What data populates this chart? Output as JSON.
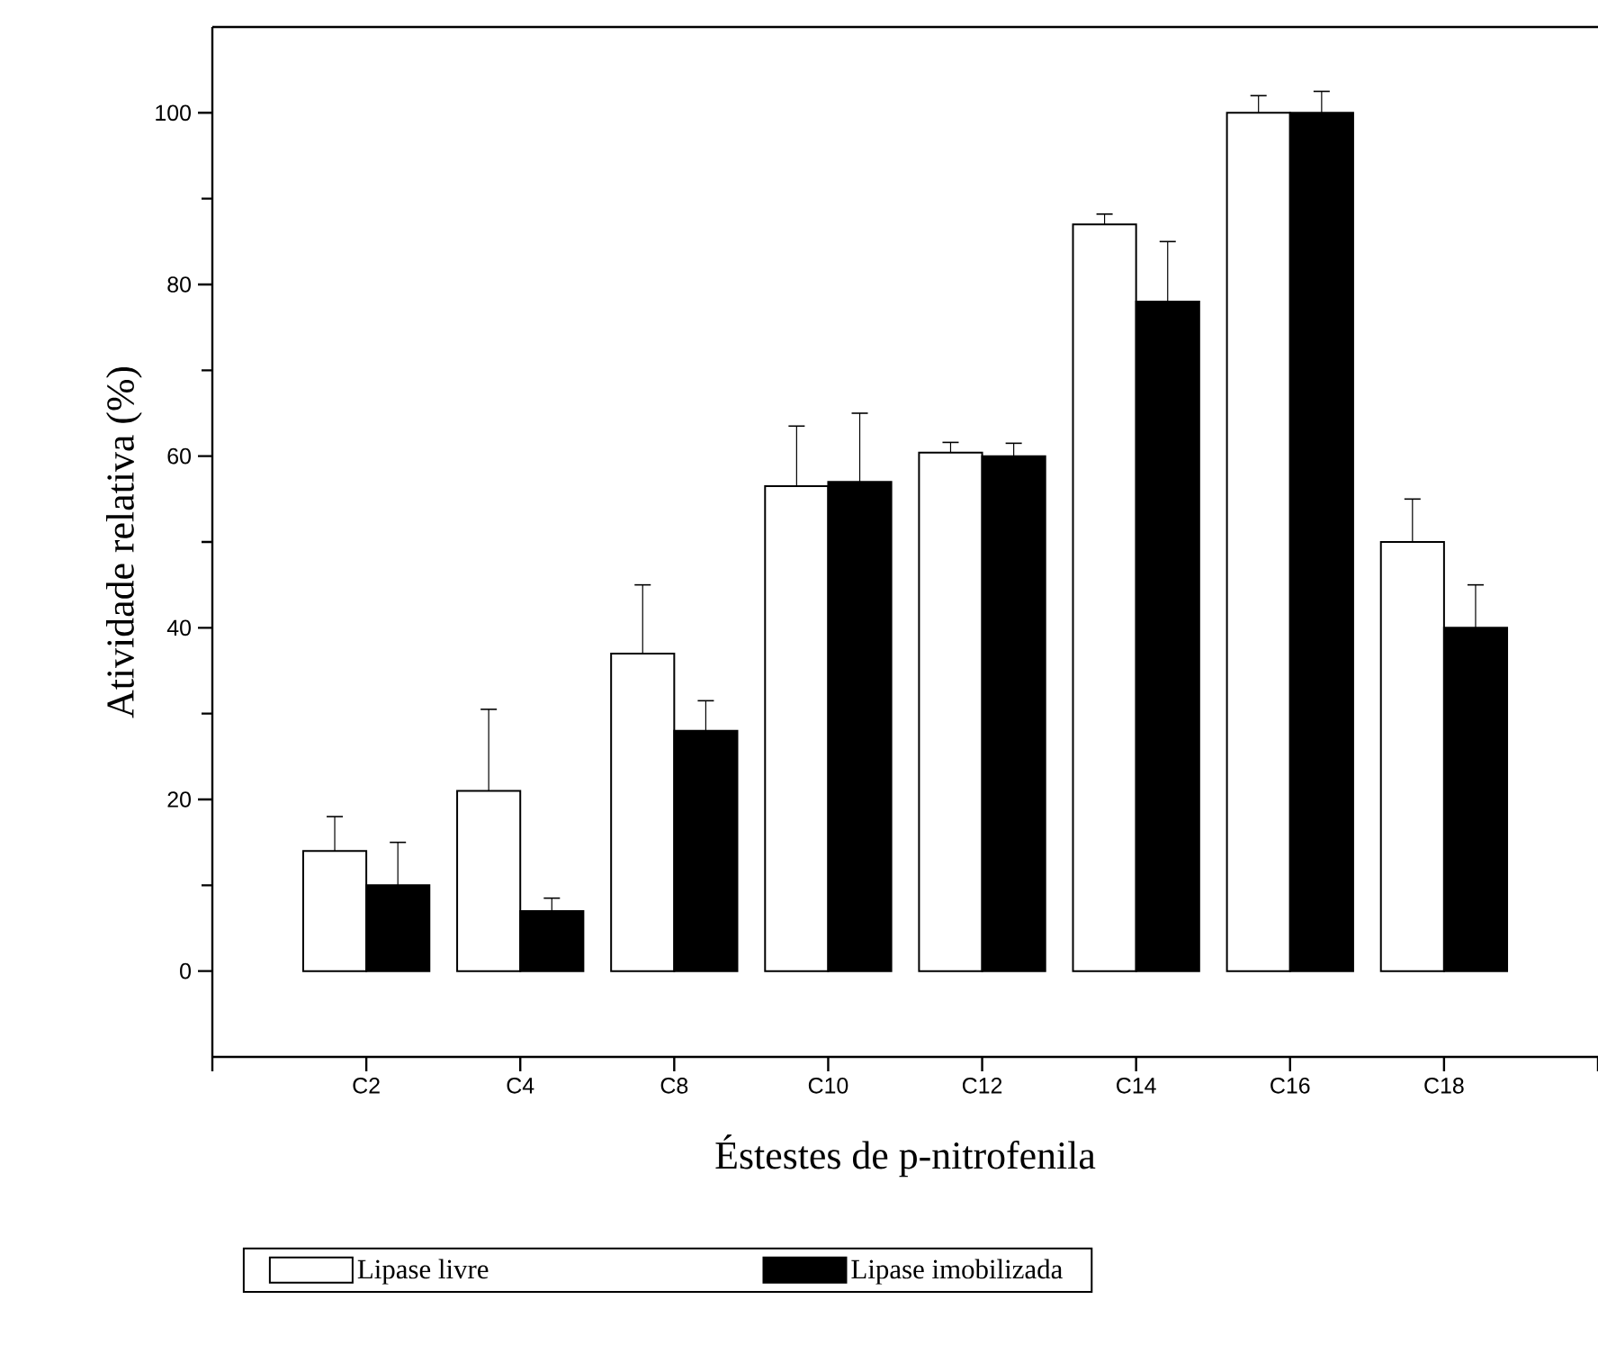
{
  "chart_data": {
    "type": "bar",
    "xlabel": "Éstestes de p-nitrofenila",
    "ylabel": "Atividade relativa (%)",
    "categories": [
      "C2",
      "C4",
      "C8",
      "C10",
      "C12",
      "C14",
      "C16",
      "C18"
    ],
    "series": [
      {
        "name": "Lipase livre",
        "color": "#ffffff",
        "values": [
          14,
          21,
          37,
          56.5,
          60.4,
          87,
          100,
          50
        ],
        "errors": [
          4,
          9.5,
          8,
          7,
          1.2,
          1.2,
          2,
          5
        ]
      },
      {
        "name": "Lipase imobilizada",
        "color": "#000000",
        "values": [
          10,
          7,
          28,
          57,
          60,
          78,
          100,
          40
        ],
        "errors": [
          5,
          1.5,
          3.5,
          8,
          1.5,
          7,
          2.5,
          5
        ]
      }
    ],
    "ylim": [
      -10,
      110
    ],
    "yticks": [
      0,
      20,
      40,
      60,
      80,
      100
    ],
    "legend": "bottom"
  }
}
